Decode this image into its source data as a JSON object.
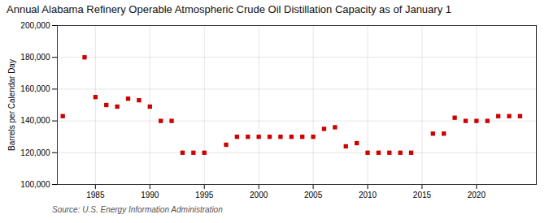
{
  "chart_data": {
    "type": "scatter",
    "title": "Annual Alabama Refinery Operable Atmospheric Crude Oil Distillation Capacity as of January 1",
    "ylabel": "Barrels per Calendar Day",
    "source": "Source: U.S. Energy Information Administration",
    "x": [
      1982,
      1984,
      1985,
      1986,
      1987,
      1988,
      1989,
      1990,
      1991,
      1992,
      1993,
      1994,
      1995,
      1997,
      1998,
      1999,
      2000,
      2001,
      2002,
      2003,
      2004,
      2005,
      2006,
      2007,
      2008,
      2009,
      2010,
      2011,
      2012,
      2013,
      2014,
      2016,
      2017,
      2018,
      2019,
      2020,
      2021,
      2022,
      2023,
      2024
    ],
    "values": [
      143000,
      180000,
      155000,
      150000,
      149000,
      154000,
      153000,
      149000,
      140000,
      140000,
      120000,
      120000,
      120000,
      125000,
      130000,
      130000,
      130000,
      130000,
      130000,
      130000,
      130000,
      130000,
      135000,
      136000,
      124000,
      126000,
      120000,
      120000,
      120000,
      120000,
      120000,
      132000,
      132000,
      142000,
      140000,
      140000,
      140000,
      143000,
      143000,
      143000
    ],
    "color": "#cc0000",
    "marker": "square",
    "grid": true,
    "xlim": [
      1981.5,
      2025.5
    ],
    "xticks": [
      1985,
      1990,
      1995,
      2000,
      2005,
      2010,
      2015,
      2020
    ],
    "ylim": [
      100000,
      200000
    ],
    "yticks": [
      {
        "value": 100000,
        "label": "100,000"
      },
      {
        "value": 120000,
        "label": "120,000"
      },
      {
        "value": 140000,
        "label": "140,000"
      },
      {
        "value": 160000,
        "label": "160,000"
      },
      {
        "value": 180000,
        "label": "180,000"
      },
      {
        "value": 200000,
        "label": "200,000"
      }
    ]
  }
}
